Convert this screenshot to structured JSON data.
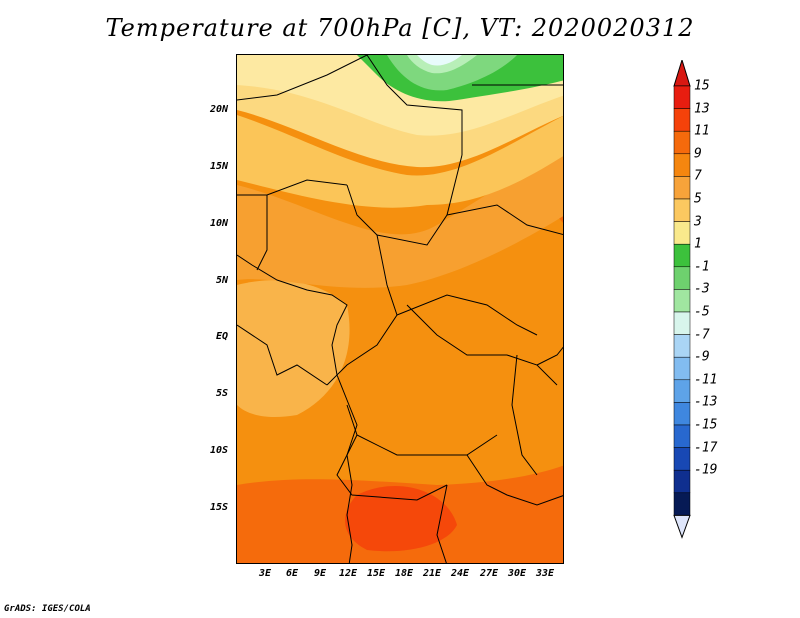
{
  "title": "Temperature at 700hPa [C], VT: 2020020312",
  "credit": "GrADS: IGES/COLA",
  "y_ticks": [
    "20N",
    "15N",
    "10N",
    "5N",
    "EQ",
    "5S",
    "10S",
    "15S"
  ],
  "x_ticks": [
    "3E",
    "6E",
    "9E",
    "12E",
    "15E",
    "18E",
    "21E",
    "24E",
    "27E",
    "30E",
    "33E"
  ],
  "colorbar": {
    "labels": [
      "15",
      "13",
      "11",
      "9",
      "7",
      "5",
      "3",
      "1",
      "-1",
      "-3",
      "-5",
      "-7",
      "-9",
      "-11",
      "-13",
      "-15",
      "-17",
      "-19"
    ],
    "colors": [
      "#e81d10",
      "#f5420a",
      "#f56a0c",
      "#f5860f",
      "#f7a33a",
      "#fbc860",
      "#f9e98c",
      "#3cc13c",
      "#6ed16e",
      "#a0e6a0",
      "#d8f5ec",
      "#aad5f5",
      "#82bcf0",
      "#5ea3e8",
      "#3f87df",
      "#2868cf",
      "#1848b4",
      "#0f2f8f",
      "#061a55"
    ],
    "top_color": "#d81812",
    "bottom_color": "#dfe6fb"
  },
  "palette": {
    "t12": "#f56b0c",
    "t11": "#f57f10",
    "t10": "#f5900f",
    "t9": "#f7a030",
    "t8": "#f9b44a",
    "t7": "#fbc558",
    "t6": "#fcd980",
    "t5": "#fde9a2",
    "t4": "#fdf1ba",
    "g1": "#3cc13c",
    "g2": "#7ed87e",
    "g3": "#b8efb8",
    "ice": "#e8fbfb"
  }
}
